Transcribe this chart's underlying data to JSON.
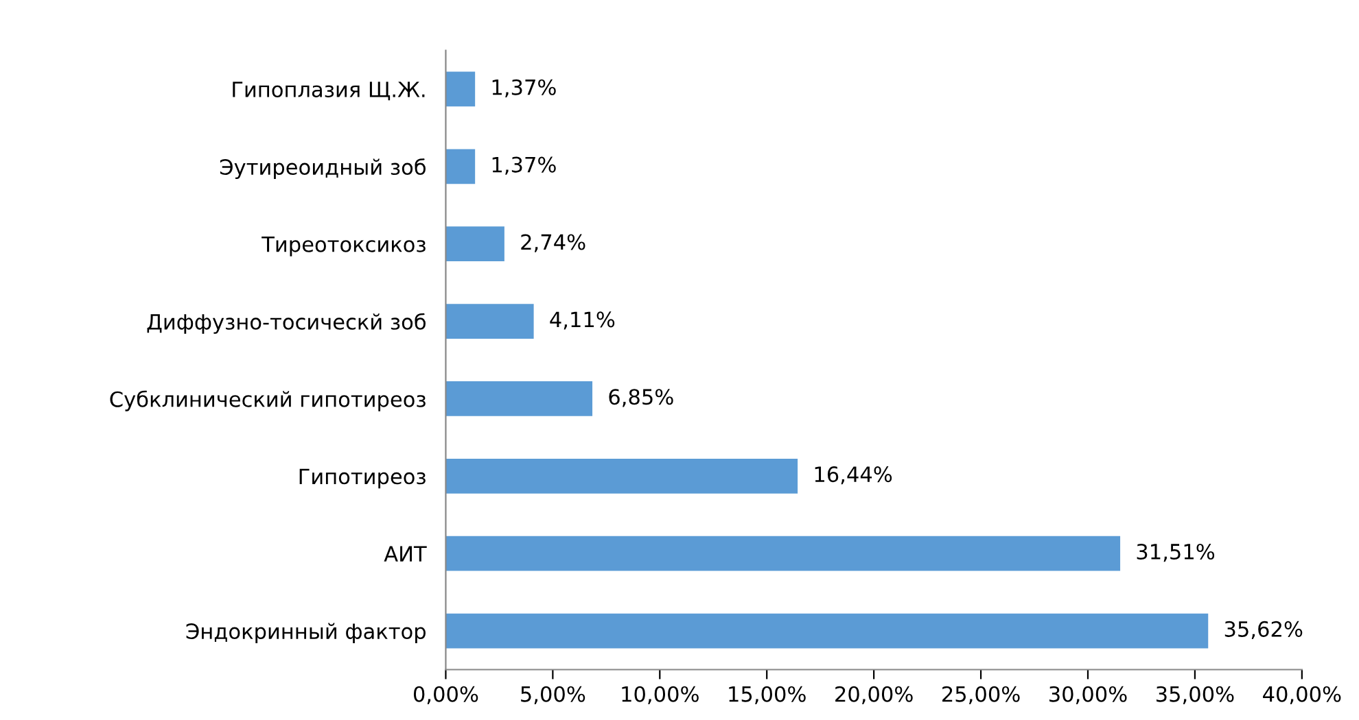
{
  "chart_data": {
    "type": "bar",
    "orientation": "horizontal",
    "categories": [
      "Гипоплазия Щ.Ж.",
      "Эутиреоидный зоб",
      "Тиреотоксикоз",
      "Диффузно-тосическй зоб",
      "Субклинический гипотиреоз",
      "Гипотиреоз",
      "АИТ",
      "Эндокринный фактор"
    ],
    "values": [
      1.37,
      1.37,
      2.74,
      4.11,
      6.85,
      16.44,
      31.51,
      35.62
    ],
    "value_labels": [
      "1,37%",
      "1,37%",
      "2,74%",
      "4,11%",
      "6,85%",
      "16,44%",
      "31,51%",
      "35,62%"
    ],
    "color": "#5b9bd5",
    "xlim": [
      0,
      40
    ],
    "xticks": [
      {
        "value": 0,
        "label": "0,00%"
      },
      {
        "value": 5,
        "label": "5,00%"
      },
      {
        "value": 10,
        "label": "10,00%"
      },
      {
        "value": 15,
        "label": "15,00%"
      },
      {
        "value": 20,
        "label": "20,00%"
      },
      {
        "value": 25,
        "label": "25,00%"
      },
      {
        "value": 30,
        "label": "30,00%"
      },
      {
        "value": 35,
        "label": "35,00%"
      },
      {
        "value": 40,
        "label": "40,00%"
      }
    ],
    "grid": false,
    "legend": false
  }
}
